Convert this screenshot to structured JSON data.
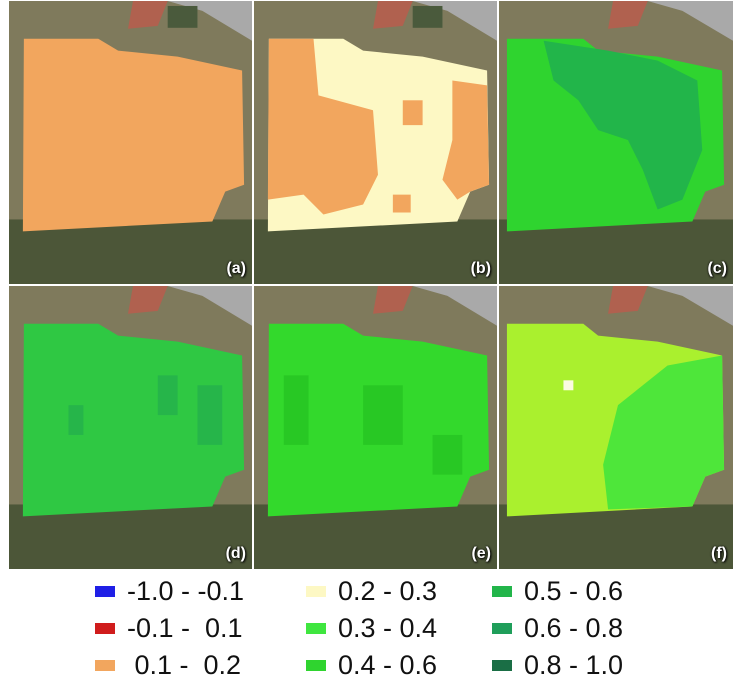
{
  "panels": [
    {
      "id": "a",
      "label": "(a)"
    },
    {
      "id": "b",
      "label": "(b)"
    },
    {
      "id": "c",
      "label": "(c)"
    },
    {
      "id": "d",
      "label": "(d)"
    },
    {
      "id": "e",
      "label": "(e)"
    },
    {
      "id": "f",
      "label": "(f)"
    }
  ],
  "legend": [
    {
      "range": "-1.0 - -0.1",
      "color": "#1f1fe6"
    },
    {
      "range": "-0.1 -  0.1",
      "color": "#d01c1c"
    },
    {
      "range": " 0.1 -  0.2",
      "color": "#f2a65e"
    },
    {
      "range": "0.2 - 0.3",
      "color": "#fdf8c4"
    },
    {
      "range": "0.3 - 0.4",
      "color": "#3fe63f"
    },
    {
      "range": "0.4 - 0.6",
      "color": "#2fd42f"
    },
    {
      "range": "0.5 - 0.6",
      "color": "#22b54a"
    },
    {
      "range": "0.6 - 0.8",
      "color": "#1f9e5a"
    },
    {
      "range": "0.8 - 1.0",
      "color": "#1a6e45"
    }
  ],
  "colors": {
    "satellite_field": "#7f7a5c",
    "satellite_dark": "#3f4a36",
    "road": "#a9a9a9",
    "building_roof": "#b0614f",
    "panel_a_fill": "#f2a65e",
    "panel_b_fill_light": "#fdf8c4",
    "panel_b_fill_orange": "#f2a65e",
    "panel_c_fill": "#2fd42f",
    "panel_c_dark": "#22b54a",
    "panel_d_fill": "#2fc843",
    "panel_d_dark": "#26b54a",
    "panel_e_fill": "#33d92c",
    "panel_e_dark": "#28c824",
    "panel_f_fill": "#aaf02e",
    "panel_f_green": "#4ee63a",
    "panel_f_white": "#fbfbe0"
  }
}
